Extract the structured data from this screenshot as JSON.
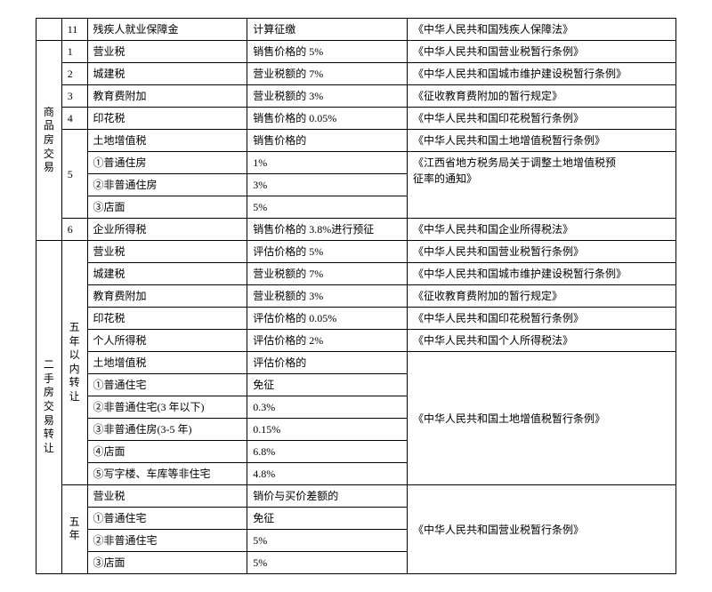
{
  "rows": [
    {
      "a": "",
      "b": "11",
      "c": "残疾人就业保障金",
      "d": "计算征缴",
      "e": "《中华人民共和国残疾人保障法》"
    },
    {
      "a": "商品房交易",
      "a_rows": 9,
      "b": "1",
      "c": "营业税",
      "d": "销售价格的 5%",
      "e": "《中华人民共和国营业税暂行条例》"
    },
    {
      "b": "2",
      "b_rows": 2,
      "c": "城建税",
      "d": "营业税额的 7%",
      "e": "《中华人民共和国城市维护建设税暂行条例》"
    },
    {
      "c": "教育费附加",
      "d": "营业税额的 3%",
      "e": "《征收教育费附加的暂行规定》"
    },
    {
      "b": "4",
      "c": "印花税",
      "d": "销售价格的 0.05%",
      "e": "《中华人民共和国印花税暂行条例》"
    },
    {
      "b": "5",
      "b_rows": 4,
      "c": "土地增值税",
      "d": "销售价格的",
      "e": "《中华人民共和国土地增值税暂行条例》"
    },
    {
      "c": "①普通住房",
      "d": "1%",
      "e": "《江西省地方税务局关于调整土地增值税预",
      "e_noborder_bottom": true
    },
    {
      "c": "②非普通住房",
      "d": "3%",
      "e": "征率的通知》",
      "e_noborder_top": true
    },
    {
      "c": "③店面",
      "d": "5%",
      "e": ""
    },
    {
      "b": "6",
      "c": "企业所得税",
      "d": "销售价格的 3.8%进行预征",
      "e": "《中华人民共和国企业所得税法》"
    },
    {
      "a": "二手房交易转让",
      "a_rows": 15,
      "b": "五年以内转让",
      "b_rows": 11,
      "b_vertical": true,
      "c": "营业税",
      "d": "评估价格的 5%",
      "e": "《中华人民共和国营业税暂行条例》"
    },
    {
      "c": "城建税",
      "d": "营业税额的 7%",
      "e": "《中华人民共和国城市维护建设税暂行条例》"
    },
    {
      "c": "教育费附加",
      "d": "营业税额的 3%",
      "e": "《征收教育费附加的暂行规定》"
    },
    {
      "c": "印花税",
      "d": "评估价格的 0.05%",
      "e": "《中华人民共和国印花税暂行条例》"
    },
    {
      "c": "个人所得税",
      "d": "评估价格的 2%",
      "e": "《中华人民共和国个人所得税法》"
    },
    {
      "c": "土地增值税",
      "d": "评估价格的",
      "e": "",
      "e_rows": 6,
      "e_text": "《中华人民共和国土地增值税暂行条例》"
    },
    {
      "c": "①普通住宅",
      "d": "免征"
    },
    {
      "c": "②非普通住宅(3 年以下)",
      "d": "0.3%"
    },
    {
      "c": "③非普通住房(3-5 年)",
      "d": "0.15%"
    },
    {
      "c": "④店面",
      "d": "6.8%"
    },
    {
      "c": "⑤写字楼、车库等非住宅",
      "d": "4.8%"
    },
    {
      "b": "五年",
      "b_rows": 4,
      "b_vertical": true,
      "c": "营业税",
      "d": "销价与买价差额的",
      "e": "",
      "e_rows": 4,
      "e_text": "《中华人民共和国营业税暂行条例》"
    },
    {
      "c": "①普通住宅",
      "d": "免征"
    },
    {
      "c": "②非普通住宅",
      "d": "5%"
    },
    {
      "c": "③店面",
      "d": "5%"
    }
  ],
  "row2_label_3": "3"
}
